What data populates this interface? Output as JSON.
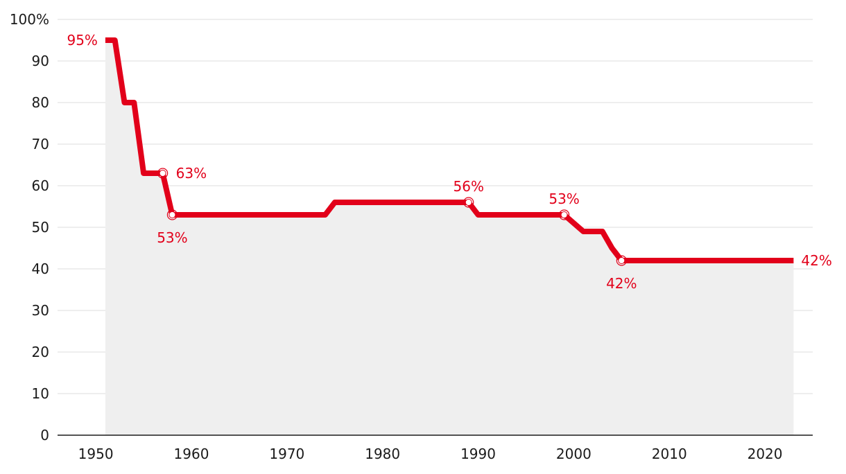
{
  "chart_data": {
    "type": "line",
    "title": "",
    "xlabel": "",
    "ylabel": "",
    "xlim": [
      1946,
      2025
    ],
    "ylim": [
      0,
      100
    ],
    "x_ticks": [
      1950,
      1960,
      1970,
      1980,
      1990,
      2000,
      2010,
      2020
    ],
    "y_ticks": [
      {
        "value": 0,
        "label": "0"
      },
      {
        "value": 10,
        "label": "10"
      },
      {
        "value": 20,
        "label": "20"
      },
      {
        "value": 30,
        "label": "30"
      },
      {
        "value": 40,
        "label": "40"
      },
      {
        "value": 50,
        "label": "50"
      },
      {
        "value": 60,
        "label": "60"
      },
      {
        "value": 70,
        "label": "70"
      },
      {
        "value": 80,
        "label": "80"
      },
      {
        "value": 90,
        "label": "90"
      },
      {
        "value": 100,
        "label": "100%"
      }
    ],
    "grid": true,
    "legend": "none",
    "line_color": "#e2001a",
    "area_color": "#efefef",
    "series": [
      {
        "x": [
          1951,
          1952,
          1953,
          1954,
          1955,
          1956,
          1957,
          1958,
          1974,
          1975,
          1989,
          1990,
          1999,
          2001,
          2003,
          2004,
          2005,
          2023
        ],
        "y": [
          95,
          95,
          80,
          80,
          63,
          63,
          63,
          53,
          53,
          56,
          56,
          53,
          53,
          49,
          49,
          45,
          42,
          42
        ]
      }
    ],
    "annotations": [
      {
        "x": 1951,
        "y": 95,
        "label": "95%",
        "marker": false,
        "pos": "left"
      },
      {
        "x": 1957,
        "y": 63,
        "label": "63%",
        "marker": true,
        "pos": "right"
      },
      {
        "x": 1958,
        "y": 53,
        "label": "53%",
        "marker": true,
        "pos": "below"
      },
      {
        "x": 1989,
        "y": 56,
        "label": "56%",
        "marker": true,
        "pos": "above"
      },
      {
        "x": 1999,
        "y": 53,
        "label": "53%",
        "marker": true,
        "pos": "above"
      },
      {
        "x": 2005,
        "y": 42,
        "label": "42%",
        "marker": true,
        "pos": "below"
      },
      {
        "x": 2023,
        "y": 42,
        "label": "42%",
        "marker": false,
        "pos": "right"
      }
    ]
  }
}
